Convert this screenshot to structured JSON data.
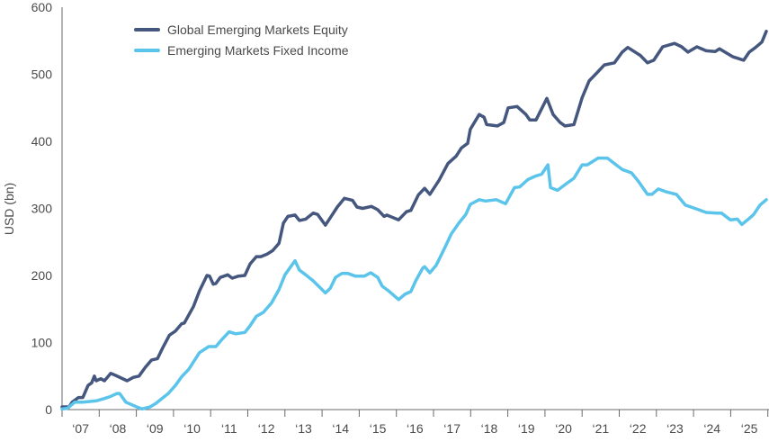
{
  "chart_data": {
    "type": "line",
    "title": "",
    "xlabel": "",
    "ylabel": "USD (bn)",
    "ylim": [
      0,
      600
    ],
    "xlim": [
      2007,
      2026
    ],
    "y_ticks": [
      "0",
      "100",
      "200",
      "300",
      "400",
      "500",
      "600"
    ],
    "x_tick_labels": [
      "‘07",
      "‘08",
      "‘09",
      "‘10",
      "‘11",
      "‘12",
      "‘13",
      "‘14",
      "‘15",
      "‘16",
      "‘17",
      "‘18",
      "‘19",
      "‘20",
      "‘21",
      "‘22",
      "‘23",
      "‘24",
      "‘25"
    ],
    "grid": false,
    "legend_position": "top-left",
    "series": [
      {
        "name": "Global Emerging Markets Equity",
        "color": "#45577e",
        "points": [
          [
            2007.0,
            4
          ],
          [
            2007.19,
            4
          ],
          [
            2007.27,
            11
          ],
          [
            2007.44,
            18
          ],
          [
            2007.56,
            18
          ],
          [
            2007.7,
            36
          ],
          [
            2007.8,
            40
          ],
          [
            2007.87,
            50
          ],
          [
            2007.92,
            43
          ],
          [
            2008.04,
            46
          ],
          [
            2008.14,
            43
          ],
          [
            2008.31,
            54
          ],
          [
            2008.44,
            51
          ],
          [
            2008.75,
            43
          ],
          [
            2008.92,
            48
          ],
          [
            2009.07,
            50
          ],
          [
            2009.24,
            63
          ],
          [
            2009.41,
            74
          ],
          [
            2009.57,
            76
          ],
          [
            2009.7,
            91
          ],
          [
            2009.89,
            111
          ],
          [
            2010.05,
            117
          ],
          [
            2010.22,
            128
          ],
          [
            2010.29,
            129
          ],
          [
            2010.54,
            154
          ],
          [
            2010.7,
            177
          ],
          [
            2010.9,
            200
          ],
          [
            2010.97,
            199
          ],
          [
            2011.07,
            187
          ],
          [
            2011.14,
            188
          ],
          [
            2011.26,
            197
          ],
          [
            2011.46,
            201
          ],
          [
            2011.58,
            196
          ],
          [
            2011.75,
            199
          ],
          [
            2011.92,
            200
          ],
          [
            2012.06,
            217
          ],
          [
            2012.23,
            228
          ],
          [
            2012.35,
            228
          ],
          [
            2012.52,
            232
          ],
          [
            2012.67,
            237
          ],
          [
            2012.84,
            248
          ],
          [
            2012.96,
            278
          ],
          [
            2013.08,
            288
          ],
          [
            2013.27,
            290
          ],
          [
            2013.39,
            282
          ],
          [
            2013.56,
            284
          ],
          [
            2013.76,
            293
          ],
          [
            2013.88,
            291
          ],
          [
            2014.09,
            275
          ],
          [
            2014.22,
            286
          ],
          [
            2014.41,
            302
          ],
          [
            2014.6,
            315
          ],
          [
            2014.82,
            312
          ],
          [
            2014.94,
            302
          ],
          [
            2015.09,
            300
          ],
          [
            2015.33,
            303
          ],
          [
            2015.5,
            298
          ],
          [
            2015.67,
            288
          ],
          [
            2015.74,
            290
          ],
          [
            2016.06,
            283
          ],
          [
            2016.27,
            295
          ],
          [
            2016.39,
            297
          ],
          [
            2016.59,
            320
          ],
          [
            2016.76,
            330
          ],
          [
            2016.9,
            321
          ],
          [
            2017.15,
            342
          ],
          [
            2017.39,
            367
          ],
          [
            2017.61,
            378
          ],
          [
            2017.75,
            390
          ],
          [
            2017.92,
            397
          ],
          [
            2017.99,
            418
          ],
          [
            2018.23,
            440
          ],
          [
            2018.36,
            436
          ],
          [
            2018.43,
            425
          ],
          [
            2018.72,
            423
          ],
          [
            2018.89,
            428
          ],
          [
            2019.01,
            450
          ],
          [
            2019.25,
            452
          ],
          [
            2019.49,
            440
          ],
          [
            2019.59,
            432
          ],
          [
            2019.76,
            432
          ],
          [
            2020.05,
            464
          ],
          [
            2020.22,
            440
          ],
          [
            2020.41,
            428
          ],
          [
            2020.54,
            423
          ],
          [
            2020.78,
            425
          ],
          [
            2021.0,
            465
          ],
          [
            2021.19,
            490
          ],
          [
            2021.43,
            504
          ],
          [
            2021.6,
            514
          ],
          [
            2021.87,
            517
          ],
          [
            2022.08,
            533
          ],
          [
            2022.23,
            540
          ],
          [
            2022.57,
            528
          ],
          [
            2022.76,
            517
          ],
          [
            2022.93,
            521
          ],
          [
            2023.17,
            541
          ],
          [
            2023.49,
            546
          ],
          [
            2023.68,
            541
          ],
          [
            2023.85,
            533
          ],
          [
            2024.09,
            541
          ],
          [
            2024.34,
            535
          ],
          [
            2024.58,
            534
          ],
          [
            2024.7,
            538
          ],
          [
            2025.06,
            526
          ],
          [
            2025.35,
            521
          ],
          [
            2025.5,
            533
          ],
          [
            2025.67,
            540
          ],
          [
            2025.84,
            548
          ],
          [
            2025.96,
            564
          ]
        ]
      },
      {
        "name": "Emerging Markets Fixed Income",
        "color": "#5bc4ea",
        "points": [
          [
            2007.0,
            1
          ],
          [
            2007.15,
            2
          ],
          [
            2007.34,
            11
          ],
          [
            2007.56,
            11
          ],
          [
            2007.92,
            13
          ],
          [
            2008.11,
            16
          ],
          [
            2008.28,
            19
          ],
          [
            2008.48,
            24
          ],
          [
            2008.55,
            24
          ],
          [
            2008.72,
            11
          ],
          [
            2009.01,
            4
          ],
          [
            2009.15,
            1
          ],
          [
            2009.37,
            4
          ],
          [
            2009.52,
            9
          ],
          [
            2009.86,
            24
          ],
          [
            2010.05,
            36
          ],
          [
            2010.22,
            49
          ],
          [
            2010.41,
            60
          ],
          [
            2010.7,
            85
          ],
          [
            2010.95,
            94
          ],
          [
            2011.14,
            94
          ],
          [
            2011.31,
            105
          ],
          [
            2011.5,
            116
          ],
          [
            2011.67,
            113
          ],
          [
            2011.92,
            115
          ],
          [
            2012.06,
            125
          ],
          [
            2012.23,
            139
          ],
          [
            2012.42,
            145
          ],
          [
            2012.64,
            159
          ],
          [
            2012.84,
            179
          ],
          [
            2013.0,
            201
          ],
          [
            2013.27,
            222
          ],
          [
            2013.39,
            208
          ],
          [
            2013.56,
            201
          ],
          [
            2013.76,
            192
          ],
          [
            2014.09,
            174
          ],
          [
            2014.22,
            181
          ],
          [
            2014.36,
            197
          ],
          [
            2014.53,
            203
          ],
          [
            2014.7,
            203
          ],
          [
            2014.89,
            199
          ],
          [
            2015.14,
            199
          ],
          [
            2015.31,
            204
          ],
          [
            2015.5,
            197
          ],
          [
            2015.62,
            184
          ],
          [
            2015.79,
            177
          ],
          [
            2016.06,
            164
          ],
          [
            2016.23,
            172
          ],
          [
            2016.39,
            176
          ],
          [
            2016.52,
            192
          ],
          [
            2016.71,
            211
          ],
          [
            2016.76,
            213
          ],
          [
            2016.9,
            204
          ],
          [
            2017.07,
            215
          ],
          [
            2017.31,
            242
          ],
          [
            2017.48,
            262
          ],
          [
            2017.68,
            278
          ],
          [
            2017.87,
            291
          ],
          [
            2017.99,
            306
          ],
          [
            2018.23,
            313
          ],
          [
            2018.4,
            311
          ],
          [
            2018.69,
            313
          ],
          [
            2018.94,
            307
          ],
          [
            2019.18,
            331
          ],
          [
            2019.32,
            332
          ],
          [
            2019.54,
            343
          ],
          [
            2019.74,
            348
          ],
          [
            2019.91,
            351
          ],
          [
            2020.08,
            365
          ],
          [
            2020.15,
            331
          ],
          [
            2020.34,
            327
          ],
          [
            2020.58,
            337
          ],
          [
            2020.78,
            345
          ],
          [
            2021.0,
            365
          ],
          [
            2021.14,
            365
          ],
          [
            2021.43,
            375
          ],
          [
            2021.68,
            375
          ],
          [
            2021.87,
            367
          ],
          [
            2022.08,
            358
          ],
          [
            2022.33,
            353
          ],
          [
            2022.52,
            340
          ],
          [
            2022.76,
            321
          ],
          [
            2022.88,
            321
          ],
          [
            2023.05,
            329
          ],
          [
            2023.25,
            325
          ],
          [
            2023.54,
            321
          ],
          [
            2023.78,
            305
          ],
          [
            2024.14,
            298
          ],
          [
            2024.34,
            294
          ],
          [
            2024.63,
            293
          ],
          [
            2024.75,
            293
          ],
          [
            2024.99,
            283
          ],
          [
            2025.18,
            284
          ],
          [
            2025.3,
            276
          ],
          [
            2025.5,
            285
          ],
          [
            2025.62,
            291
          ],
          [
            2025.79,
            305
          ],
          [
            2025.96,
            313
          ]
        ]
      }
    ]
  }
}
